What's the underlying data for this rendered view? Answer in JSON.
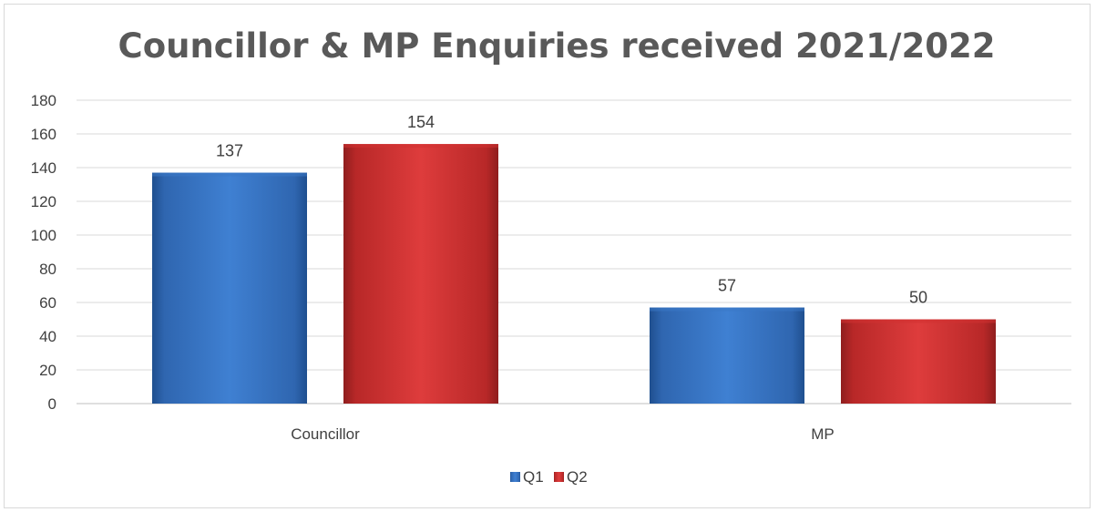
{
  "chart_data": {
    "type": "bar",
    "title": "Councillor & MP Enquiries received 2021/2022",
    "categories": [
      "Councillor",
      "MP"
    ],
    "series": [
      {
        "name": "Q1",
        "values": [
          137,
          57
        ],
        "color": "#3a78c6"
      },
      {
        "name": "Q2",
        "values": [
          154,
          50
        ],
        "color": "#d23232"
      }
    ],
    "ylim": [
      0,
      180
    ],
    "yticks": [
      "0",
      "20",
      "40",
      "60",
      "80",
      "100",
      "120",
      "140",
      "160",
      "180"
    ],
    "grid": true,
    "legend_position": "bottom"
  }
}
